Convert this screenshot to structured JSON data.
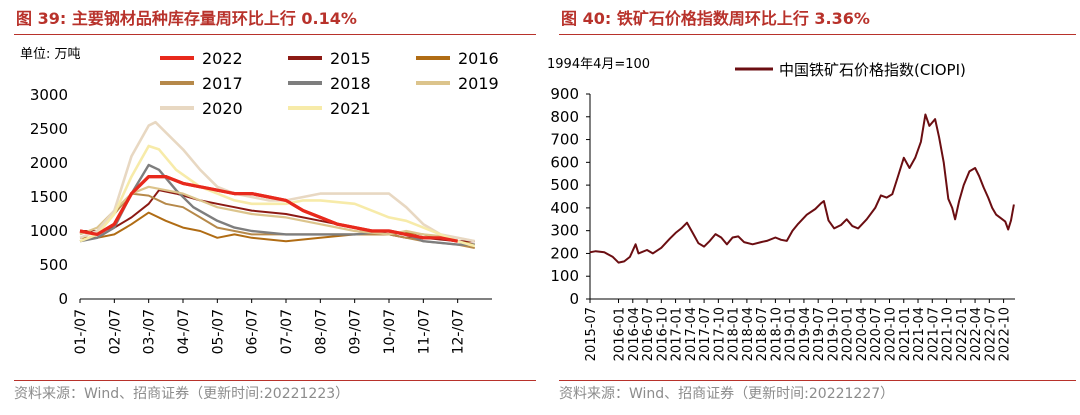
{
  "left_panel": {
    "title_prefix": "图 39:",
    "title_text": "主要钢材品种库存量周环比上行 0.14%",
    "source": "资料来源：Wind、招商证券（更新时间:20221223）"
  },
  "right_panel": {
    "title_prefix": "图 40:",
    "title_text": "铁矿石价格指数周环比上行 3.36%",
    "source": "资料来源：Wind、招商证券（更新时间:20221227）"
  },
  "chart_data": [
    {
      "type": "line",
      "unit_label": "单位: 万吨",
      "ylim": [
        0,
        3000
      ],
      "yticks": [
        0,
        500,
        1000,
        1500,
        2000,
        2500,
        3000
      ],
      "x_ticks": [
        "01-/07",
        "02-/07",
        "03-/07",
        "04-/07",
        "05-/07",
        "06-/07",
        "07-/07",
        "08-/07",
        "09-/07",
        "10-/07",
        "11-/07",
        "12-/07"
      ],
      "x_range": [
        1,
        13
      ],
      "grid": false,
      "legend_position": "top",
      "series": [
        {
          "name": "2022",
          "color": "#e8291c",
          "width": 3.2,
          "points": [
            [
              1,
              1000
            ],
            [
              1.5,
              950
            ],
            [
              2,
              1100
            ],
            [
              2.5,
              1550
            ],
            [
              3,
              1800
            ],
            [
              3.5,
              1800
            ],
            [
              4,
              1700
            ],
            [
              4.5,
              1650
            ],
            [
              5,
              1600
            ],
            [
              5.5,
              1550
            ],
            [
              6,
              1550
            ],
            [
              6.5,
              1500
            ],
            [
              7,
              1450
            ],
            [
              7.5,
              1300
            ],
            [
              8,
              1200
            ],
            [
              8.5,
              1100
            ],
            [
              9,
              1050
            ],
            [
              9.5,
              1000
            ],
            [
              10,
              1000
            ],
            [
              10.5,
              950
            ],
            [
              11,
              900
            ],
            [
              11.5,
              900
            ],
            [
              12,
              850
            ]
          ]
        },
        {
          "name": "2015",
          "color": "#8c1a14",
          "width": 2,
          "points": [
            [
              1,
              1000
            ],
            [
              1.5,
              1000
            ],
            [
              2,
              1050
            ],
            [
              2.5,
              1200
            ],
            [
              3,
              1400
            ],
            [
              3.3,
              1600
            ],
            [
              3.8,
              1550
            ],
            [
              4.5,
              1450
            ],
            [
              5,
              1400
            ],
            [
              5.5,
              1350
            ],
            [
              6,
              1300
            ],
            [
              7,
              1250
            ],
            [
              8,
              1150
            ],
            [
              9,
              1050
            ],
            [
              10,
              950
            ],
            [
              10.5,
              900
            ],
            [
              11,
              900
            ],
            [
              12,
              850
            ],
            [
              12.5,
              850
            ]
          ]
        },
        {
          "name": "2016",
          "color": "#b06c14",
          "width": 2,
          "points": [
            [
              1,
              900
            ],
            [
              1.5,
              900
            ],
            [
              2,
              950
            ],
            [
              2.5,
              1100
            ],
            [
              3,
              1270
            ],
            [
              3.5,
              1150
            ],
            [
              4,
              1050
            ],
            [
              4.5,
              1000
            ],
            [
              5,
              900
            ],
            [
              5.5,
              950
            ],
            [
              6,
              900
            ],
            [
              7,
              850
            ],
            [
              8,
              900
            ],
            [
              9,
              950
            ],
            [
              10,
              950
            ],
            [
              10.5,
              980
            ],
            [
              11,
              950
            ],
            [
              11.5,
              900
            ],
            [
              12,
              850
            ],
            [
              12.5,
              800
            ]
          ]
        },
        {
          "name": "2017",
          "color": "#b6894a",
          "width": 2,
          "points": [
            [
              1,
              850
            ],
            [
              1.5,
              950
            ],
            [
              2,
              1250
            ],
            [
              2.5,
              1550
            ],
            [
              3,
              1520
            ],
            [
              3.5,
              1400
            ],
            [
              4,
              1350
            ],
            [
              4.5,
              1200
            ],
            [
              5,
              1050
            ],
            [
              5.5,
              1000
            ],
            [
              6,
              950
            ],
            [
              7,
              950
            ],
            [
              8,
              950
            ],
            [
              9,
              950
            ],
            [
              10,
              950
            ],
            [
              10.5,
              900
            ],
            [
              11,
              850
            ],
            [
              12,
              800
            ],
            [
              12.5,
              750
            ]
          ]
        },
        {
          "name": "2018",
          "color": "#7e7e7e",
          "width": 2.4,
          "points": [
            [
              1,
              850
            ],
            [
              1.5,
              900
            ],
            [
              2,
              1050
            ],
            [
              2.5,
              1550
            ],
            [
              3,
              1970
            ],
            [
              3.3,
              1900
            ],
            [
              3.8,
              1600
            ],
            [
              4.3,
              1350
            ],
            [
              5,
              1150
            ],
            [
              5.5,
              1050
            ],
            [
              6,
              1000
            ],
            [
              7,
              950
            ],
            [
              8,
              950
            ],
            [
              9,
              950
            ],
            [
              10,
              1000
            ],
            [
              10.5,
              950
            ],
            [
              11,
              850
            ],
            [
              12,
              800
            ],
            [
              12.5,
              800
            ]
          ]
        },
        {
          "name": "2019",
          "color": "#dcc48c",
          "width": 2.2,
          "points": [
            [
              1,
              950
            ],
            [
              1.5,
              1050
            ],
            [
              2,
              1300
            ],
            [
              2.5,
              1550
            ],
            [
              3,
              1650
            ],
            [
              3.5,
              1600
            ],
            [
              4,
              1550
            ],
            [
              4.5,
              1450
            ],
            [
              5,
              1350
            ],
            [
              6,
              1250
            ],
            [
              7,
              1200
            ],
            [
              8,
              1100
            ],
            [
              9,
              1000
            ],
            [
              10,
              950
            ],
            [
              10.5,
              1000
            ],
            [
              11,
              950
            ],
            [
              12,
              900
            ],
            [
              12.5,
              850
            ]
          ]
        },
        {
          "name": "2020",
          "color": "#e8d8c2",
          "width": 2.6,
          "points": [
            [
              1,
              900
            ],
            [
              1.5,
              1000
            ],
            [
              2,
              1300
            ],
            [
              2.5,
              2100
            ],
            [
              3,
              2550
            ],
            [
              3.2,
              2600
            ],
            [
              3.5,
              2450
            ],
            [
              4,
              2200
            ],
            [
              4.5,
              1900
            ],
            [
              5,
              1650
            ],
            [
              5.5,
              1550
            ],
            [
              6,
              1500
            ],
            [
              6.5,
              1450
            ],
            [
              7,
              1450
            ],
            [
              7.5,
              1500
            ],
            [
              8,
              1550
            ],
            [
              8.5,
              1550
            ],
            [
              9,
              1550
            ],
            [
              9.5,
              1550
            ],
            [
              10,
              1550
            ],
            [
              10.5,
              1350
            ],
            [
              11,
              1100
            ],
            [
              11.5,
              950
            ],
            [
              12,
              900
            ],
            [
              12.5,
              850
            ]
          ]
        },
        {
          "name": "2021",
          "color": "#f7eba9",
          "width": 2.6,
          "points": [
            [
              1,
              850
            ],
            [
              1.5,
              950
            ],
            [
              2,
              1250
            ],
            [
              2.5,
              1800
            ],
            [
              3,
              2250
            ],
            [
              3.3,
              2200
            ],
            [
              3.8,
              1900
            ],
            [
              4.5,
              1650
            ],
            [
              5,
              1550
            ],
            [
              5.5,
              1450
            ],
            [
              6,
              1400
            ],
            [
              7,
              1400
            ],
            [
              7.5,
              1450
            ],
            [
              8,
              1450
            ],
            [
              9,
              1400
            ],
            [
              10,
              1200
            ],
            [
              10.5,
              1150
            ],
            [
              11,
              1050
            ],
            [
              11.5,
              950
            ],
            [
              12,
              850
            ],
            [
              12.5,
              780
            ]
          ]
        }
      ]
    },
    {
      "type": "line",
      "annotation": "1994年4月=100",
      "ylim": [
        0,
        900
      ],
      "yticks": [
        0,
        100,
        200,
        300,
        400,
        500,
        600,
        700,
        800,
        900
      ],
      "x_ticks": [
        "2015-07",
        "2016-01",
        "2016-04",
        "2016-07",
        "2016-10",
        "2017-01",
        "2017-04",
        "2017-07",
        "2017-10",
        "2018-01",
        "2018-04",
        "2018-07",
        "2018-10",
        "2019-01",
        "2019-04",
        "2019-07",
        "2019-10",
        "2020-01",
        "2020-04",
        "2020-07",
        "2020-10",
        "2021-01",
        "2021-04",
        "2021-07",
        "2021-10",
        "2022-01",
        "2022-04",
        "2022-07",
        "2022-10"
      ],
      "x_range_months": [
        2015.5,
        2022.95
      ],
      "grid": false,
      "legend_position": "top-right",
      "series": [
        {
          "name": "中国铁矿石价格指数(CIOPI)",
          "color": "#6b0e12",
          "width": 2,
          "points": [
            [
              2015.5,
              205
            ],
            [
              2015.6,
              210
            ],
            [
              2015.75,
              205
            ],
            [
              2015.9,
              185
            ],
            [
              2016.0,
              160
            ],
            [
              2016.1,
              165
            ],
            [
              2016.2,
              185
            ],
            [
              2016.3,
              240
            ],
            [
              2016.35,
              200
            ],
            [
              2016.5,
              215
            ],
            [
              2016.6,
              200
            ],
            [
              2016.75,
              225
            ],
            [
              2016.9,
              265
            ],
            [
              2017.0,
              290
            ],
            [
              2017.1,
              310
            ],
            [
              2017.2,
              335
            ],
            [
              2017.3,
              290
            ],
            [
              2017.4,
              245
            ],
            [
              2017.5,
              230
            ],
            [
              2017.6,
              255
            ],
            [
              2017.7,
              285
            ],
            [
              2017.8,
              270
            ],
            [
              2017.9,
              240
            ],
            [
              2018.0,
              270
            ],
            [
              2018.1,
              275
            ],
            [
              2018.2,
              250
            ],
            [
              2018.35,
              240
            ],
            [
              2018.5,
              250
            ],
            [
              2018.6,
              255
            ],
            [
              2018.75,
              270
            ],
            [
              2018.85,
              260
            ],
            [
              2018.95,
              255
            ],
            [
              2019.05,
              300
            ],
            [
              2019.15,
              330
            ],
            [
              2019.3,
              370
            ],
            [
              2019.45,
              395
            ],
            [
              2019.55,
              420
            ],
            [
              2019.6,
              430
            ],
            [
              2019.68,
              345
            ],
            [
              2019.78,
              310
            ],
            [
              2019.9,
              325
            ],
            [
              2020.0,
              350
            ],
            [
              2020.1,
              320
            ],
            [
              2020.2,
              310
            ],
            [
              2020.35,
              350
            ],
            [
              2020.5,
              400
            ],
            [
              2020.6,
              455
            ],
            [
              2020.7,
              445
            ],
            [
              2020.8,
              460
            ],
            [
              2020.9,
              540
            ],
            [
              2021.0,
              620
            ],
            [
              2021.1,
              575
            ],
            [
              2021.2,
              620
            ],
            [
              2021.3,
              690
            ],
            [
              2021.38,
              810
            ],
            [
              2021.45,
              760
            ],
            [
              2021.55,
              790
            ],
            [
              2021.62,
              710
            ],
            [
              2021.7,
              600
            ],
            [
              2021.78,
              440
            ],
            [
              2021.85,
              400
            ],
            [
              2021.9,
              350
            ],
            [
              2021.97,
              430
            ],
            [
              2022.05,
              500
            ],
            [
              2022.15,
              560
            ],
            [
              2022.25,
              575
            ],
            [
              2022.32,
              540
            ],
            [
              2022.4,
              490
            ],
            [
              2022.48,
              445
            ],
            [
              2022.55,
              400
            ],
            [
              2022.62,
              370
            ],
            [
              2022.7,
              355
            ],
            [
              2022.78,
              340
            ],
            [
              2022.83,
              305
            ],
            [
              2022.88,
              345
            ],
            [
              2022.93,
              415
            ]
          ]
        }
      ]
    }
  ]
}
